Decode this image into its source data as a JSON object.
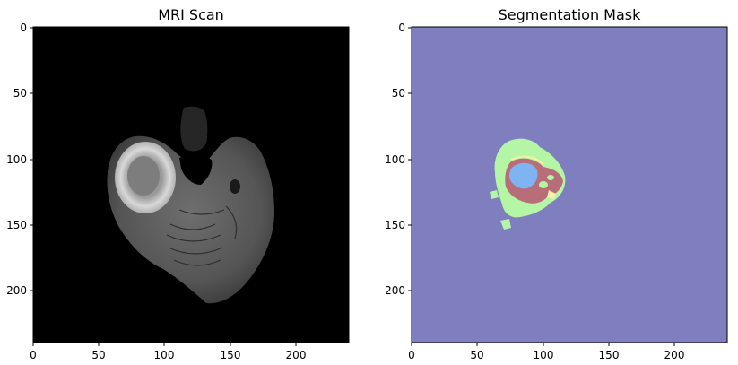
{
  "panels": [
    {
      "title": "MRI Scan",
      "x_ticks": [
        "0",
        "50",
        "100",
        "150",
        "200"
      ],
      "y_ticks": [
        "0",
        "50",
        "100",
        "150",
        "200"
      ]
    },
    {
      "title": "Segmentation Mask",
      "x_ticks": [
        "0",
        "50",
        "100",
        "150",
        "200"
      ],
      "y_ticks": [
        "0",
        "50",
        "100",
        "150",
        "200"
      ]
    }
  ],
  "colors": {
    "mri_background": "#000000",
    "mask_background": "#7f7fbf",
    "mask_edema": "#b4f5a6",
    "mask_core": "#b86e78",
    "mask_necrosis": "#7fb4f2",
    "mask_enhancing": "#f3f0a8"
  }
}
